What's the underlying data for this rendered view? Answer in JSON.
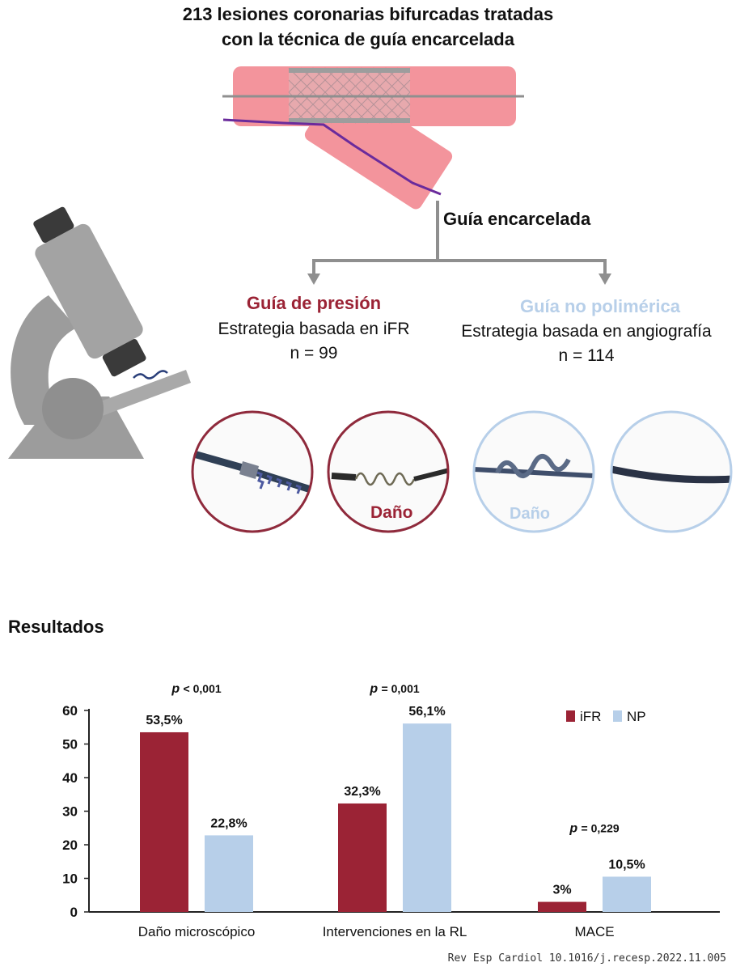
{
  "header": {
    "title_line1": "213 lesiones coronarias bifurcadas tratadas",
    "title_line2": "con la técnica de guía encarcelada",
    "jailed_label": "Guía encarcelada"
  },
  "groups": [
    {
      "name": "Guía de presión",
      "strategy": "Estrategia basada en iFR",
      "n": "n = 99",
      "color": "#9b2335"
    },
    {
      "name": "Guía no polimérica",
      "strategy": "Estrategia basada en angiografía",
      "n": "n = 114",
      "color": "#b7cfe9"
    }
  ],
  "damage_labels": {
    "pressure": "Daño",
    "nonpolymeric": "Daño"
  },
  "results_heading": "Resultados",
  "chart_data": {
    "type": "bar",
    "categories": [
      "Daño microscópico",
      "Intervenciones en la RL",
      "MACE"
    ],
    "series": [
      {
        "name": "iFR",
        "values": [
          53.5,
          32.3,
          3
        ],
        "labels": [
          "53,5%",
          "32,3%",
          "3%"
        ],
        "color": "#9b2335"
      },
      {
        "name": "NP",
        "values": [
          22.8,
          56.1,
          10.5
        ],
        "labels": [
          "22,8%",
          "56,1%",
          "10,5%"
        ],
        "color": "#b7cfe9"
      }
    ],
    "p_values": [
      {
        "prefix": "p",
        "text": "< 0,001"
      },
      {
        "prefix": "p",
        "text": "= 0,001"
      },
      {
        "prefix": "p",
        "text": "= 0,229"
      }
    ],
    "ylim": [
      0,
      60
    ],
    "yticks": [
      "0",
      "10",
      "20",
      "30",
      "40",
      "50",
      "60"
    ],
    "legend_position": "top-right",
    "xlabel": "",
    "ylabel": ""
  },
  "citation": "Rev Esp Cardiol 10.1016/j.recesp.2022.11.005",
  "icons": [
    "microscope-icon",
    "bifurcation-stent-icon",
    "guidewire-photo-icon"
  ]
}
